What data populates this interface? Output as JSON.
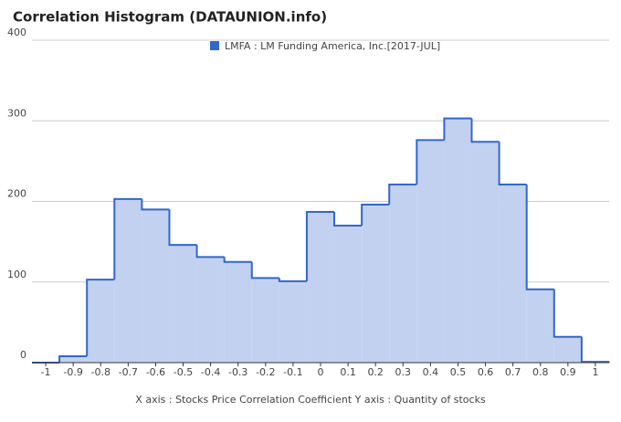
{
  "chart_data": {
    "type": "histogram",
    "title": "Correlation Histogram (DATAUNION.info)",
    "x_label": "X axis : Stocks Price Correlation Coefficient  Y axis : Quantity of stocks",
    "series": [
      {
        "name": "LMFA : LM Funding America, Inc.[2017-JUL]",
        "color": "#3366cc",
        "fill": "#c2d1f0",
        "values": [
          0,
          8,
          103,
          203,
          190,
          146,
          131,
          125,
          105,
          101,
          187,
          170,
          196,
          221,
          276,
          303,
          274,
          221,
          91,
          32,
          1
        ]
      }
    ],
    "bins": [
      -1.05,
      -0.95,
      -0.85,
      -0.75,
      -0.65,
      -0.55,
      -0.45,
      -0.35,
      -0.25,
      -0.15,
      -0.05,
      0.05,
      0.15,
      0.25,
      0.35,
      0.45,
      0.55,
      0.65,
      0.75,
      0.85,
      0.95,
      1.05
    ],
    "xlim": [
      -1.05,
      1.05
    ],
    "xticks": [
      -1,
      -0.9,
      -0.8,
      -0.7,
      -0.6,
      -0.5,
      -0.4,
      -0.3,
      -0.2,
      -0.1,
      0,
      0.1,
      0.2,
      0.3,
      0.4,
      0.5,
      0.6,
      0.7,
      0.8,
      0.9,
      1
    ],
    "ylim": [
      0,
      400
    ],
    "yticks": [
      0,
      100,
      200,
      300,
      400
    ],
    "grid": true
  }
}
